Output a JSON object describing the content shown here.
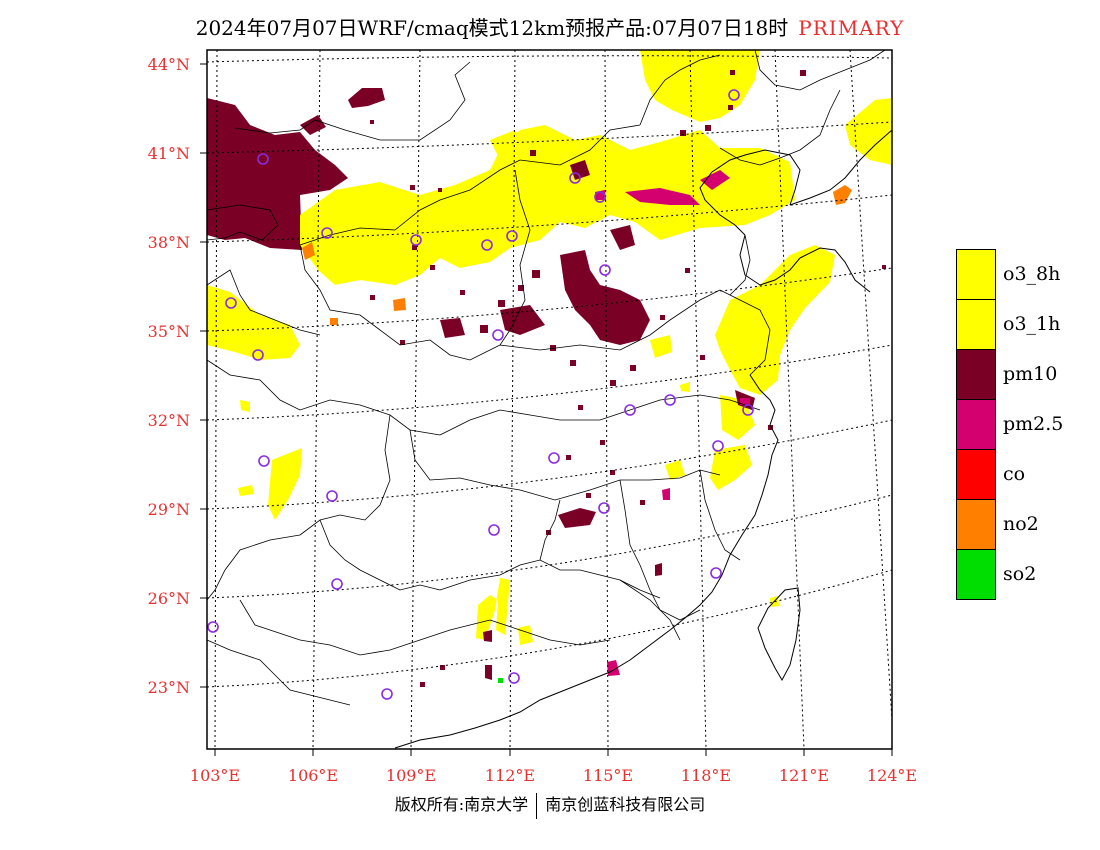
{
  "title": {
    "main": "2024年07月07日WRF/cmaq模式12km预报产品:07月07日18时",
    "tag": "PRIMARY"
  },
  "axes": {
    "lat_labels": [
      "44°N",
      "41°N",
      "38°N",
      "35°N",
      "32°N",
      "29°N",
      "26°N",
      "23°N"
    ],
    "lon_labels": [
      "103°E",
      "106°E",
      "109°E",
      "112°E",
      "115°E",
      "118°E",
      "121°E",
      "124°E"
    ]
  },
  "legend": [
    {
      "label": "o3_8h",
      "color": "#ffff00"
    },
    {
      "label": "o3_1h",
      "color": "#ffff00"
    },
    {
      "label": "pm10",
      "color": "#7a0026"
    },
    {
      "label": "pm2.5",
      "color": "#d4006f"
    },
    {
      "label": "co",
      "color": "#ff0000"
    },
    {
      "label": "no2",
      "color": "#ff7f00"
    },
    {
      "label": "so2",
      "color": "#00dd00"
    }
  ],
  "footer": {
    "left": "版权所有:南京大学",
    "right": "南京创蓝科技有限公司"
  },
  "colors": {
    "label_red": "#e83030",
    "station_marker": "#8a2be2"
  }
}
